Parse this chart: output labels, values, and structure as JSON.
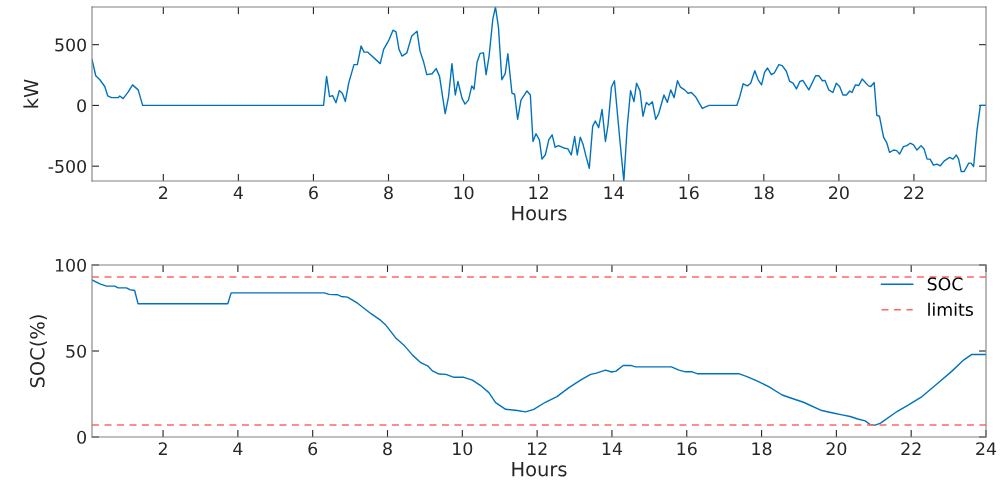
{
  "chart_data": [
    {
      "type": "line",
      "xlabel": "Hours",
      "ylabel": "kW",
      "xlim": [
        0.1,
        23.92
      ],
      "xticks": [
        2,
        4,
        6,
        8,
        10,
        12,
        14,
        16,
        18,
        20,
        22
      ],
      "ylim": [
        -622,
        810
      ],
      "yticks": [
        -500,
        0,
        500
      ],
      "grid": false,
      "legend": false,
      "series": [
        {
          "color": "#0072bd",
          "x": [
            0.1,
            0.2,
            0.31,
            0.44,
            0.52,
            0.62,
            0.8,
            0.84,
            0.93,
            1.07,
            1.18,
            1.33,
            1.45,
            6.27,
            6.35,
            6.43,
            6.51,
            6.6,
            6.69,
            6.77,
            6.85,
            6.94,
            7.08,
            7.17,
            7.27,
            7.35,
            7.44,
            7.78,
            7.87,
            8.0,
            8.12,
            8.2,
            8.28,
            8.36,
            8.49,
            8.62,
            8.76,
            8.84,
            8.93,
            9.02,
            9.16,
            9.27,
            9.36,
            9.51,
            9.6,
            9.69,
            9.78,
            9.85,
            9.96,
            10.04,
            10.13,
            10.22,
            10.28,
            10.36,
            10.44,
            10.53,
            10.6,
            10.68,
            10.78,
            10.85,
            10.93,
            11.02,
            11.11,
            11.18,
            11.29,
            11.36,
            11.44,
            11.53,
            11.69,
            11.78,
            11.85,
            11.93,
            12.02,
            12.09,
            12.18,
            12.27,
            12.36,
            12.44,
            12.53,
            12.67,
            12.78,
            12.87,
            12.96,
            13.03,
            13.11,
            13.18,
            13.27,
            13.35,
            13.44,
            13.51,
            13.6,
            13.69,
            13.78,
            13.85,
            13.94,
            14.02,
            14.12,
            14.2,
            14.27,
            14.36,
            14.45,
            14.54,
            14.61,
            14.7,
            14.78,
            14.87,
            14.94,
            15.03,
            15.12,
            15.2,
            15.34,
            15.43,
            15.52,
            15.61,
            15.7,
            15.78,
            15.89,
            15.98,
            16.07,
            16.18,
            16.36,
            16.54,
            17.28,
            17.36,
            17.45,
            17.56,
            17.65,
            17.76,
            17.85,
            17.94,
            18.02,
            18.1,
            18.2,
            18.28,
            18.4,
            18.49,
            18.6,
            18.69,
            18.78,
            18.87,
            18.96,
            19.04,
            19.2,
            19.38,
            19.47,
            19.56,
            19.63,
            19.73,
            19.84,
            19.93,
            20.02,
            20.11,
            20.2,
            20.29,
            20.35,
            20.44,
            20.53,
            20.62,
            20.79,
            20.85,
            20.94,
            21.01,
            21.08,
            21.19,
            21.28,
            21.35,
            21.46,
            21.54,
            21.62,
            21.72,
            21.81,
            21.9,
            21.99,
            22.08,
            22.19,
            22.27,
            22.35,
            22.43,
            22.52,
            22.61,
            22.7,
            22.81,
            22.95,
            23.04,
            23.13,
            23.19,
            23.26,
            23.34,
            23.46,
            23.52,
            23.59,
            23.68,
            23.77,
            23.92
          ],
          "values": [
            378,
            244,
            211,
            156,
            78,
            64,
            64,
            78,
            56,
            114,
            169,
            128,
            0,
            0,
            239,
            72,
            81,
            22,
            122,
            100,
            33,
            183,
            336,
            336,
            489,
            439,
            439,
            344,
            461,
            531,
            619,
            606,
            461,
            406,
            433,
            572,
            611,
            447,
            364,
            253,
            261,
            303,
            239,
            -67,
            72,
            344,
            86,
            197,
            58,
            11,
            44,
            161,
            133,
            356,
            428,
            433,
            253,
            406,
            711,
            810,
            642,
            211,
            261,
            425,
            100,
            92,
            -114,
            44,
            119,
            86,
            -297,
            -233,
            -283,
            -442,
            -406,
            -283,
            -242,
            -344,
            -331,
            -350,
            -358,
            -408,
            -256,
            -408,
            -261,
            -317,
            -428,
            -517,
            -172,
            -128,
            -183,
            -33,
            -297,
            -158,
            150,
            203,
            -136,
            -400,
            -622,
            -178,
            122,
            31,
            183,
            122,
            -89,
            25,
            3,
            31,
            -114,
            -67,
            86,
            25,
            128,
            64,
            203,
            150,
            128,
            100,
            106,
            72,
            -25,
            0,
            0,
            72,
            178,
            161,
            183,
            286,
            211,
            169,
            272,
            308,
            253,
            267,
            336,
            328,
            281,
            197,
            183,
            136,
            197,
            206,
            128,
            244,
            244,
            203,
            206,
            128,
            106,
            183,
            156,
            86,
            86,
            119,
            106,
            169,
            164,
            217,
            161,
            156,
            189,
            -81,
            -89,
            -261,
            -311,
            -386,
            -367,
            -372,
            -400,
            -339,
            -331,
            -311,
            -325,
            -367,
            -331,
            -358,
            -442,
            -442,
            -492,
            -483,
            -497,
            -456,
            -428,
            -442,
            -408,
            -442,
            -544,
            -544,
            -475,
            -475,
            -503,
            -206,
            0,
            0
          ]
        }
      ]
    },
    {
      "type": "line",
      "xlabel": "Hours",
      "ylabel": "SOC(%)",
      "xlim": [
        0.1,
        24
      ],
      "xticks": [
        2,
        4,
        6,
        8,
        10,
        12,
        14,
        16,
        18,
        20,
        22,
        24
      ],
      "ylim": [
        0,
        100
      ],
      "yticks": [
        0,
        50,
        100
      ],
      "grid": false,
      "legend": "top right",
      "ref_lines": [
        {
          "axis": "y",
          "value": 93,
          "label": "limits",
          "color": "#ff6666",
          "line_style": "dashed"
        },
        {
          "axis": "y",
          "value": 7,
          "color": "#ff6666",
          "line_style": "dashed"
        }
      ],
      "series": [
        {
          "name": "SOC",
          "color": "#0072bd",
          "x": [
            0.1,
            0.31,
            0.49,
            0.71,
            0.8,
            1.02,
            1.11,
            1.24,
            1.33,
            3.73,
            3.82,
            6.31,
            6.44,
            6.67,
            6.76,
            6.93,
            7.2,
            7.56,
            7.82,
            7.96,
            8.22,
            8.44,
            8.67,
            8.89,
            9.07,
            9.2,
            9.38,
            9.56,
            9.78,
            10.04,
            10.27,
            10.49,
            10.71,
            10.89,
            11.16,
            11.47,
            11.69,
            11.91,
            12.22,
            12.53,
            12.85,
            13.16,
            13.43,
            13.56,
            13.83,
            13.99,
            14.11,
            14.3,
            14.5,
            14.63,
            15.59,
            15.79,
            15.97,
            16.14,
            16.28,
            17.39,
            17.61,
            17.83,
            18.19,
            18.55,
            18.86,
            19.12,
            19.61,
            19.88,
            20.15,
            20.37,
            20.55,
            20.77,
            20.91,
            21.04,
            21.18,
            21.62,
            21.93,
            22.29,
            22.64,
            23.09,
            23.4,
            23.62,
            24
          ],
          "values": [
            91.3,
            89,
            87.7,
            87.7,
            86.7,
            86.7,
            85.7,
            85.2,
            77.5,
            77.5,
            83.8,
            83.8,
            82.9,
            82.7,
            81.7,
            81.3,
            77.8,
            71.7,
            67.8,
            64.9,
            57.6,
            53.4,
            47.6,
            43.2,
            41.4,
            38.5,
            36.6,
            36.4,
            34.7,
            34.7,
            33.1,
            29.9,
            25.8,
            20,
            16.1,
            15.4,
            14.6,
            16.1,
            20.2,
            23.5,
            28.7,
            33.1,
            36.4,
            37,
            38.9,
            37.8,
            38.3,
            41.6,
            41.6,
            40.8,
            40.8,
            38.9,
            37.9,
            37.9,
            36.8,
            36.8,
            35.1,
            33.1,
            29.3,
            24.4,
            22.1,
            20.2,
            15.4,
            14.1,
            12.9,
            11.9,
            10.6,
            9.4,
            7.1,
            6.9,
            8.1,
            14.8,
            18.7,
            23.5,
            29.9,
            38.3,
            44.7,
            48,
            48
          ]
        }
      ]
    }
  ]
}
